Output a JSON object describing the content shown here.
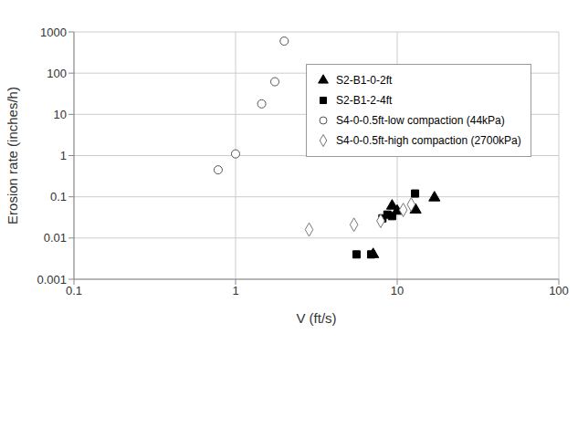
{
  "chart_data": {
    "type": "scatter",
    "x_label": "V (ft/s)",
    "y_label": "Erosion rate (inches/h)",
    "log": true,
    "grid": true,
    "legend": "upper right",
    "xlim": [
      0.1,
      100
    ],
    "xticks": [
      0.1,
      1,
      10,
      100
    ],
    "ylim": [
      0.001,
      1000
    ],
    "yticks": [
      0.001,
      0.01,
      0.1,
      1,
      10,
      100,
      1000
    ],
    "series": [
      {
        "name": "S2-B1-0-2ft",
        "color": "#000000",
        "marker": "triangle",
        "x": [
          7.1,
          9.3,
          10.0,
          13.0,
          17.0
        ],
        "values": [
          0.004,
          0.06,
          0.045,
          0.048,
          0.095
        ]
      },
      {
        "name": "S2-B1-2-4ft",
        "color": "#000000",
        "marker": "square",
        "x": [
          5.6,
          6.9,
          8.1,
          8.7,
          9.3,
          12.9
        ],
        "values": [
          0.004,
          0.004,
          0.03,
          0.037,
          0.034,
          0.12
        ]
      },
      {
        "name": "S4-0-0.5ft-low compaction (44kPa)",
        "color": "#555555",
        "marker": "circle-open",
        "x": [
          0.78,
          1.0,
          1.45,
          1.75,
          2.0
        ],
        "values": [
          0.45,
          1.1,
          18,
          62,
          600
        ]
      },
      {
        "name": "S4-0-0.5ft-high compaction (2700kPa)",
        "color": "#777777",
        "marker": "diamond-open",
        "x": [
          2.85,
          5.4,
          7.9,
          10.9,
          12.2
        ],
        "values": [
          0.016,
          0.021,
          0.026,
          0.048,
          0.065
        ]
      }
    ]
  }
}
